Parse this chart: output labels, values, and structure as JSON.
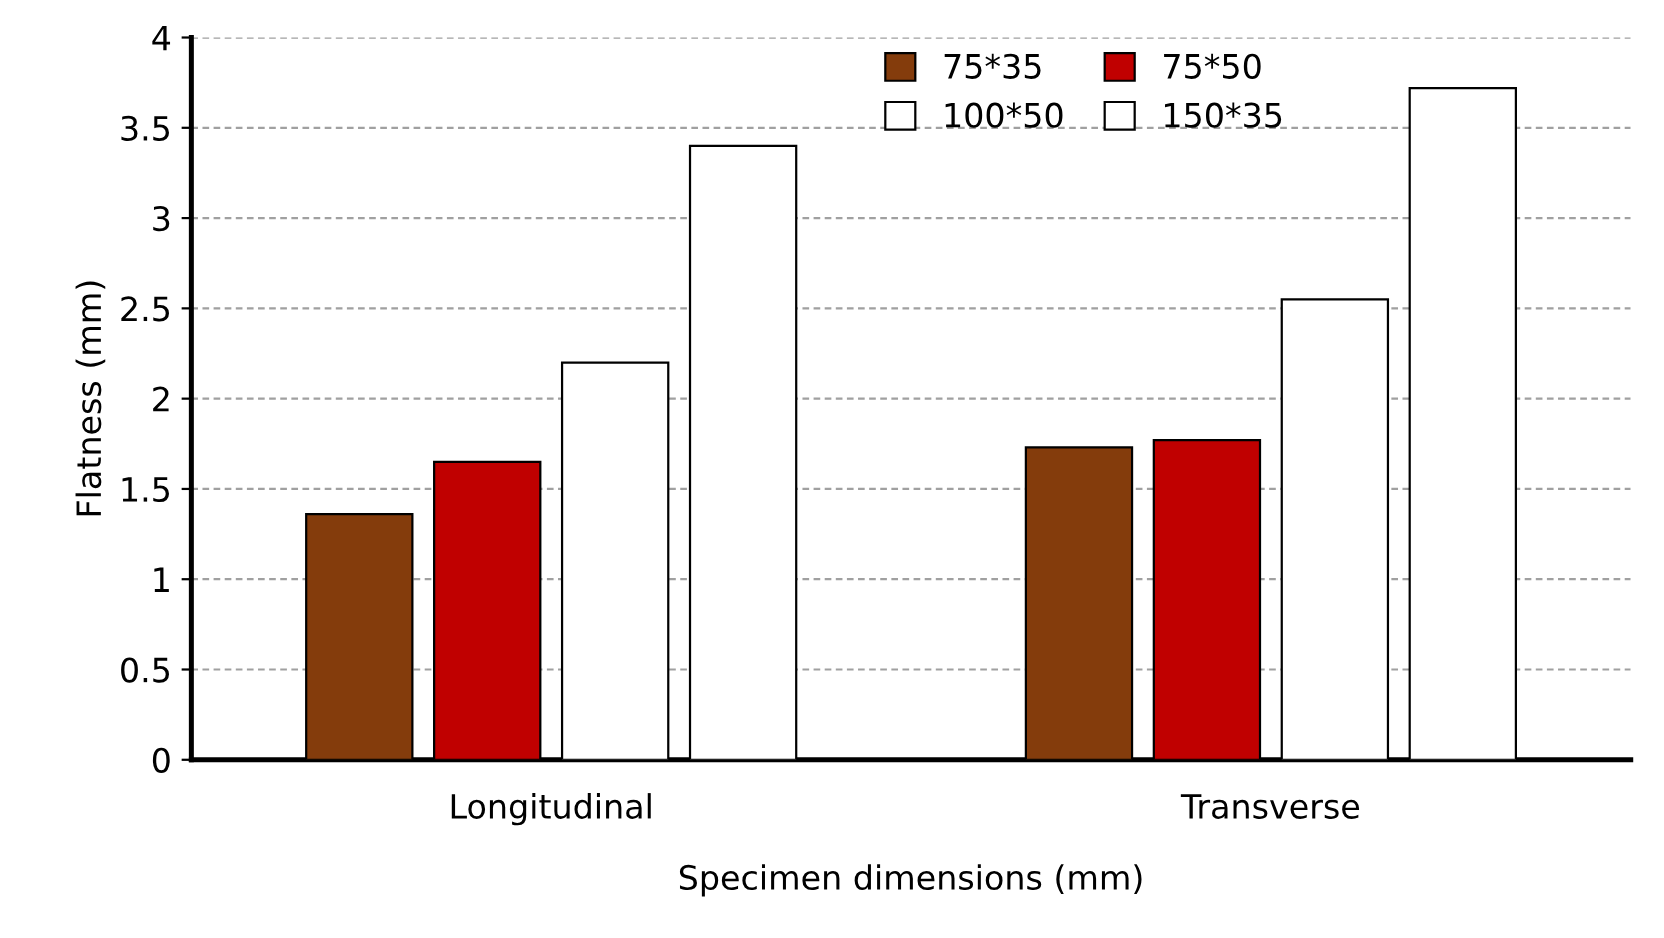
{
  "chart_data": {
    "type": "bar",
    "xlabel": "Specimen dimensions (mm)",
    "ylabel": "Flatness (mm)",
    "categories": [
      "Longitudinal",
      "Transverse"
    ],
    "series": [
      {
        "name": "75*35",
        "color": "#843c0c",
        "values": [
          1.36,
          1.73
        ]
      },
      {
        "name": "75*50",
        "color": "#c00000",
        "values": [
          1.65,
          1.77
        ]
      },
      {
        "name": "100*50",
        "color": "#ffffff",
        "values": [
          2.2,
          2.55
        ]
      },
      {
        "name": "150*35",
        "color": "#ffffff",
        "values": [
          3.4,
          3.72
        ]
      }
    ],
    "ylim": [
      0,
      4
    ],
    "yticks": [
      0,
      0.5,
      1,
      1.5,
      2,
      2.5,
      3,
      3.5,
      4
    ],
    "grid": "y",
    "legend": "top right"
  }
}
